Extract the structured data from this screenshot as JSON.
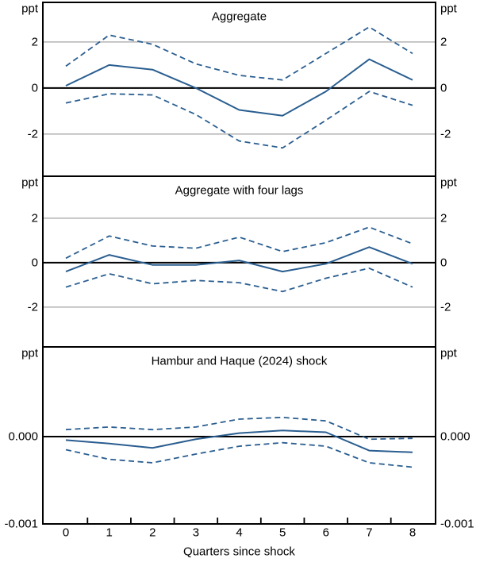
{
  "colors": {
    "line_blue": "#2A5E90",
    "grid_gray": "#B3B3B3",
    "axis_black": "#000000",
    "background": "#FFFFFF"
  },
  "figure": {
    "x_axis_label": "Quarters since shock",
    "x_tick_labels": [
      "0",
      "1",
      "2",
      "3",
      "4",
      "5",
      "6",
      "7",
      "8"
    ],
    "unit_label": "ppt"
  },
  "chart_data": [
    {
      "type": "line",
      "title": "Aggregate",
      "unit_left": "ppt",
      "unit_right": "ppt",
      "x": [
        0,
        1,
        2,
        3,
        4,
        5,
        6,
        7,
        8
      ],
      "ylim": [
        -3.83,
        3.72
      ],
      "gridlines": [
        2,
        -2
      ],
      "zero_line": 0,
      "yticks": [
        {
          "value": 2,
          "label": "2"
        },
        {
          "value": 0,
          "label": "0"
        },
        {
          "value": -2,
          "label": "-2"
        }
      ],
      "series": [
        {
          "name": "upper-confidence-band",
          "style": "dashed",
          "values": [
            0.95,
            2.3,
            1.9,
            1.05,
            0.55,
            0.35,
            1.5,
            2.65,
            1.5
          ]
        },
        {
          "name": "lower-confidence-band",
          "style": "dashed",
          "values": [
            -0.65,
            -0.25,
            -0.3,
            -1.15,
            -2.3,
            -2.6,
            -1.4,
            -0.15,
            -0.75
          ]
        },
        {
          "name": "point-estimate",
          "style": "solid",
          "values": [
            0.1,
            1.0,
            0.8,
            0.0,
            -0.95,
            -1.2,
            -0.15,
            1.25,
            0.35
          ]
        }
      ]
    },
    {
      "type": "line",
      "title": "Aggregate with four lags",
      "unit_left": "ppt",
      "unit_right": "ppt",
      "x": [
        0,
        1,
        2,
        3,
        4,
        5,
        6,
        7,
        8
      ],
      "ylim": [
        -3.79,
        3.89
      ],
      "gridlines": [
        2,
        -2
      ],
      "zero_line": 0,
      "yticks": [
        {
          "value": 2,
          "label": "2"
        },
        {
          "value": 0,
          "label": "0"
        },
        {
          "value": -2,
          "label": "-2"
        }
      ],
      "series": [
        {
          "name": "upper-confidence-band",
          "style": "dashed",
          "values": [
            0.2,
            1.2,
            0.75,
            0.65,
            1.15,
            0.5,
            0.9,
            1.6,
            0.85
          ]
        },
        {
          "name": "lower-confidence-band",
          "style": "dashed",
          "values": [
            -1.1,
            -0.5,
            -0.95,
            -0.8,
            -0.9,
            -1.3,
            -0.7,
            -0.25,
            -1.1
          ]
        },
        {
          "name": "point-estimate",
          "style": "solid",
          "values": [
            -0.4,
            0.35,
            -0.1,
            -0.1,
            0.1,
            -0.4,
            -0.05,
            0.7,
            -0.05
          ]
        }
      ]
    },
    {
      "type": "line",
      "title": "Hambur and Haque (2024) shock",
      "unit_left": "ppt",
      "unit_right": "ppt",
      "x": [
        0,
        1,
        2,
        3,
        4,
        5,
        6,
        7,
        8
      ],
      "ylim": [
        -0.001,
        0.001027
      ],
      "gridlines": [],
      "zero_line": 0,
      "yticks": [
        {
          "value": 0,
          "label": "0.000"
        },
        {
          "value": -0.001,
          "label": "-0.001"
        }
      ],
      "series": [
        {
          "name": "upper-confidence-band",
          "style": "dashed",
          "values": [
            8e-05,
            0.00011,
            8e-05,
            0.00011,
            0.0002,
            0.00022,
            0.00018,
            -3e-05,
            -2e-05
          ]
        },
        {
          "name": "lower-confidence-band",
          "style": "dashed",
          "values": [
            -0.00015,
            -0.00026,
            -0.0003,
            -0.0002,
            -0.00011,
            -7e-05,
            -0.00011,
            -0.0003,
            -0.00035
          ]
        },
        {
          "name": "point-estimate",
          "style": "solid",
          "values": [
            -4e-05,
            -8e-05,
            -0.00013,
            -3e-05,
            4e-05,
            7e-05,
            5e-05,
            -0.00016,
            -0.00018
          ]
        }
      ]
    }
  ]
}
